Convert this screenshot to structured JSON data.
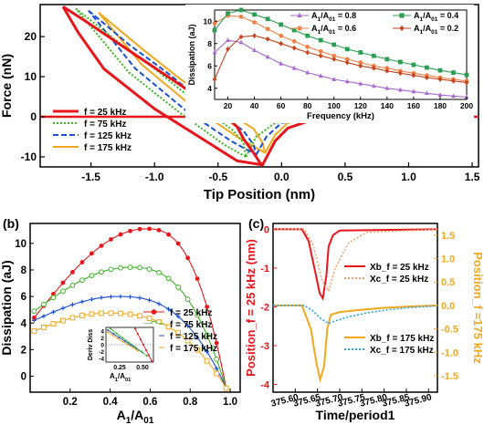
{
  "chart_data": [
    {
      "panel": "top",
      "type": "line",
      "xlabel": "Tip Position (nm)",
      "ylabel": "Force (nN)",
      "xlim": [
        -1.9,
        1.55
      ],
      "ylim": [
        -12.5,
        28
      ],
      "xticks": [
        "-1.5",
        "-1.0",
        "-0.5",
        "0.0",
        "0.5",
        "1.0",
        "1.5"
      ],
      "xtick_values": [
        -1.5,
        -1.0,
        -0.5,
        0.0,
        0.5,
        1.0,
        1.5
      ],
      "yticks": [
        "20",
        "10",
        "0",
        "-10"
      ],
      "ytick_values": [
        20,
        10,
        0,
        -10
      ],
      "legend_position": "bottom-left",
      "series": [
        {
          "name": "f = 25 kHz",
          "color": "#e8151b",
          "dash": "solid",
          "width": 3,
          "loop": [
            [
              -1.72,
              27.5
            ],
            [
              -1.55,
              24
            ],
            [
              -1.2,
              16.5
            ],
            [
              -0.8,
              8
            ],
            [
              -0.5,
              1.5
            ],
            [
              -0.35,
              -2.5
            ],
            [
              -0.3,
              -5.5
            ],
            [
              -0.22,
              -9
            ],
            [
              -0.17,
              -11.5
            ],
            [
              -0.15,
              -12
            ],
            [
              -0.35,
              -11
            ],
            [
              -0.6,
              -6
            ],
            [
              -1.0,
              2
            ],
            [
              -1.4,
              12
            ],
            [
              -1.6,
              21
            ],
            [
              -1.72,
              27.5
            ]
          ],
          "tail": [
            [
              -0.15,
              -12
            ],
            [
              -0.05,
              -6
            ],
            [
              0.05,
              -2.8
            ],
            [
              0.2,
              -1.2
            ],
            [
              0.4,
              -0.5
            ],
            [
              0.8,
              -0.2
            ],
            [
              1.5,
              0
            ]
          ]
        },
        {
          "name": "f = 75 kHz",
          "color": "#3cb521",
          "dash": "dotted",
          "width": 2,
          "loop": [
            [
              -1.62,
              27
            ],
            [
              -1.3,
              19
            ],
            [
              -1.0,
              12
            ],
            [
              -0.65,
              3
            ],
            [
              -0.38,
              -3.5
            ],
            [
              -0.3,
              -6.5
            ],
            [
              -0.28,
              -10
            ],
            [
              -0.45,
              -7
            ],
            [
              -0.8,
              1
            ],
            [
              -1.2,
              11
            ],
            [
              -1.62,
              27
            ]
          ],
          "tail": [
            [
              -0.28,
              -10
            ],
            [
              -0.2,
              -5
            ],
            [
              -0.05,
              -1.5
            ],
            [
              0.3,
              -0.3
            ],
            [
              1.5,
              0
            ]
          ]
        },
        {
          "name": "f = 125 kHz",
          "color": "#1a4fd6",
          "dash": "dashed",
          "width": 2,
          "loop": [
            [
              -1.52,
              26.5
            ],
            [
              -1.2,
              18
            ],
            [
              -0.9,
              11
            ],
            [
              -0.55,
              2
            ],
            [
              -0.3,
              -3.5
            ],
            [
              -0.22,
              -7
            ],
            [
              -0.2,
              -9.5
            ],
            [
              -0.4,
              -6
            ],
            [
              -0.75,
              1.5
            ],
            [
              -1.15,
              12
            ],
            [
              -1.52,
              26.5
            ]
          ],
          "tail": [
            [
              -0.2,
              -9.5
            ],
            [
              -0.12,
              -5
            ],
            [
              0.0,
              -1.5
            ],
            [
              0.3,
              -0.3
            ],
            [
              1.5,
              0
            ]
          ]
        },
        {
          "name": "f = 175 kHz",
          "color": "#f2a81d",
          "dash": "solid",
          "width": 2,
          "loop": [
            [
              -1.44,
              26
            ],
            [
              -1.1,
              17
            ],
            [
              -0.8,
              9.5
            ],
            [
              -0.45,
              1.5
            ],
            [
              -0.22,
              -3
            ],
            [
              -0.15,
              -6.5
            ],
            [
              -0.13,
              -9
            ],
            [
              -0.35,
              -5
            ],
            [
              -0.7,
              2.5
            ],
            [
              -1.1,
              13
            ],
            [
              -1.44,
              26
            ]
          ],
          "tail": [
            [
              -0.13,
              -9
            ],
            [
              -0.05,
              -4.5
            ],
            [
              0.05,
              -1.5
            ],
            [
              0.3,
              -0.3
            ],
            [
              1.5,
              0
            ]
          ]
        }
      ]
    },
    {
      "panel": "top-inset",
      "type": "line",
      "xlabel": "Frequency (kHz)",
      "ylabel": "Dissipation (aJ)",
      "xlim": [
        10,
        200
      ],
      "ylim": [
        3,
        11
      ],
      "xticks": [
        "20",
        "40",
        "60",
        "80",
        "100",
        "120",
        "140",
        "160",
        "180",
        "200"
      ],
      "xtick_values": [
        20,
        40,
        60,
        80,
        100,
        120,
        140,
        160,
        180,
        200
      ],
      "yticks": [
        "4",
        "6",
        "8",
        "10"
      ],
      "ytick_values": [
        4,
        6,
        8,
        10
      ],
      "x": [
        10,
        20,
        30,
        40,
        50,
        60,
        70,
        80,
        90,
        100,
        110,
        120,
        130,
        140,
        150,
        160,
        170,
        180,
        190,
        200
      ],
      "series": [
        {
          "name": "A1/A01 = 0.8",
          "color": "#a86ad0",
          "marker": "triangle",
          "values": [
            7.2,
            8.3,
            8.1,
            7.4,
            6.8,
            6.2,
            5.8,
            5.4,
            5.1,
            4.8,
            4.6,
            4.4,
            4.2,
            4.0,
            3.85,
            3.7,
            3.55,
            3.4,
            3.3,
            3.2
          ]
        },
        {
          "name": "A1/A01 = 0.6",
          "color": "#f0834a",
          "marker": "circle",
          "values": [
            9.8,
            10.5,
            10.4,
            9.9,
            9.3,
            8.7,
            8.2,
            7.7,
            7.3,
            6.9,
            6.6,
            6.3,
            6.0,
            5.8,
            5.55,
            5.35,
            5.15,
            4.95,
            4.8,
            4.65
          ]
        },
        {
          "name": "A1/A01 = 0.4",
          "color": "#2e9e55",
          "marker": "square",
          "values": [
            9.2,
            10.7,
            11.0,
            10.6,
            10.2,
            9.7,
            9.2,
            8.7,
            8.3,
            7.9,
            7.5,
            7.2,
            6.9,
            6.6,
            6.35,
            6.1,
            5.85,
            5.6,
            5.4,
            5.2
          ]
        },
        {
          "name": "A1/A01 = 0.2",
          "color": "#c4451f",
          "marker": "diamond",
          "values": [
            4.8,
            7.5,
            8.6,
            8.7,
            8.4,
            8.0,
            7.6,
            7.2,
            6.9,
            6.6,
            6.3,
            6.0,
            5.8,
            5.55,
            5.35,
            5.15,
            4.95,
            4.8,
            4.65,
            4.5
          ]
        }
      ],
      "legend": [
        {
          "pre": "A",
          "sub1": "1",
          "mid": "/A",
          "sub2": "01",
          "post": " = 0.8"
        },
        {
          "pre": "A",
          "sub1": "1",
          "mid": "/A",
          "sub2": "01",
          "post": " = 0.6"
        },
        {
          "pre": "A",
          "sub1": "1",
          "mid": "/A",
          "sub2": "01",
          "post": " = 0.4"
        },
        {
          "pre": "A",
          "sub1": "1",
          "mid": "/A",
          "sub2": "01",
          "post": " = 0.2"
        }
      ]
    },
    {
      "panel": "b",
      "label": "(b)",
      "type": "line",
      "xlabel_pre": "A",
      "xlabel_sub1": "1",
      "xlabel_mid": "/A",
      "xlabel_sub2": "01",
      "ylabel": "Dissipation (aJ)",
      "xlim": [
        0,
        1.05
      ],
      "ylim": [
        -1.2,
        11.5
      ],
      "xticks": [
        "0.2",
        "0.4",
        "0.6",
        "0.8",
        "1.0"
      ],
      "xtick_values": [
        0.2,
        0.4,
        0.6,
        0.8,
        1.0
      ],
      "yticks": [
        "0",
        "2",
        "4",
        "6",
        "8",
        "10"
      ],
      "ytick_values": [
        0,
        2,
        4,
        6,
        8,
        10
      ],
      "legend_position": "bottom-right",
      "series": [
        {
          "name": "f = 25 kHz",
          "color": "#e8151b",
          "marker": "filled-circle",
          "peak": 11.1,
          "peak_x": 0.58,
          "start": 4.4
        },
        {
          "name": "f = 75 kHz",
          "color": "#3cb521",
          "marker": "open-circle",
          "peak": 8.2,
          "peak_x": 0.5,
          "start": 4.9
        },
        {
          "name": "f = 125 kHz",
          "color": "#1a4fd6",
          "marker": "cross",
          "peak": 6.0,
          "peak_x": 0.44,
          "start": 4.2
        },
        {
          "name": "f = 175 kHz",
          "color": "#f2a81d",
          "marker": "open-square",
          "peak": 4.75,
          "peak_x": 0.38,
          "start": 3.4
        }
      ],
      "inset": {
        "ylabel": "Deriv Diss",
        "xlabel_pre": "A",
        "xlabel_sub1": "1",
        "xlabel_mid": "/A",
        "xlabel_sub2": "01",
        "xticks": [
          "0.25",
          "0.50"
        ],
        "xtick_values": [
          0.25,
          0.5
        ],
        "yticks": [
          "4",
          "2",
          "0",
          "-2",
          "-4"
        ],
        "ytick_values": [
          4,
          2,
          0,
          -2,
          -4
        ],
        "xlim": [
          0.1,
          0.62
        ],
        "ylim": [
          -5,
          5
        ]
      }
    },
    {
      "panel": "c",
      "label": "(c)",
      "type": "line",
      "xlabel": "Time/period1",
      "ylabel_left": "Position_f = 25 kHz (nm)",
      "ylabel_right": "Position_f =175 kHz",
      "xlim": [
        375.55,
        375.92
      ],
      "xticks": [
        "375.60",
        "375.65",
        "375.70",
        "375.75",
        "375.80",
        "375.85",
        "375.90"
      ],
      "xtick_values": [
        375.6,
        375.65,
        375.7,
        375.75,
        375.8,
        375.85,
        375.9
      ],
      "ylim_left": [
        -4.2,
        0.15
      ],
      "yticks_left": [
        "0",
        "-1",
        "-2",
        "-3",
        "-4"
      ],
      "ytick_values_left": [
        0,
        -1,
        -2,
        -3,
        -4
      ],
      "ylim_right": [
        -1.85,
        1.75
      ],
      "yticks_right": [
        "1.5",
        "1.0",
        "0.5",
        "0.0",
        "-0.5",
        "-1.0",
        "-1.5"
      ],
      "ytick_values_right": [
        1.5,
        1.0,
        0.5,
        0.0,
        -0.5,
        -1.0,
        -1.5
      ],
      "series": [
        {
          "name": "Xb_f = 25 kHz",
          "color": "#e8151b",
          "dash": "solid",
          "axis": "left",
          "points": [
            [
              375.55,
              0
            ],
            [
              375.615,
              0
            ],
            [
              375.63,
              -0.3
            ],
            [
              375.645,
              -1.1
            ],
            [
              375.655,
              -1.65
            ],
            [
              375.662,
              -1.78
            ],
            [
              375.67,
              -1.2
            ],
            [
              375.675,
              -0.45
            ],
            [
              375.685,
              -0.15
            ],
            [
              375.7,
              -0.03
            ],
            [
              375.92,
              0
            ]
          ]
        },
        {
          "name": "Xc_f = 25 kHz",
          "color": "#f4a070",
          "dash": "dotted",
          "axis": "left",
          "points": [
            [
              375.55,
              0
            ],
            [
              375.62,
              0
            ],
            [
              375.64,
              -0.4
            ],
            [
              375.66,
              -1.3
            ],
            [
              375.675,
              -1.6
            ],
            [
              375.69,
              -1.0
            ],
            [
              375.72,
              -0.35
            ],
            [
              375.76,
              -0.08
            ],
            [
              375.92,
              0
            ]
          ]
        },
        {
          "name": "Xb_f = 175 kHz",
          "color": "#f2a81d",
          "dash": "solid",
          "axis": "right",
          "points": [
            [
              375.55,
              0
            ],
            [
              375.615,
              0
            ],
            [
              375.635,
              -0.5
            ],
            [
              375.648,
              -1.25
            ],
            [
              375.656,
              -1.58
            ],
            [
              375.665,
              -1.3
            ],
            [
              375.672,
              -0.5
            ],
            [
              375.68,
              -0.2
            ],
            [
              375.7,
              -0.14
            ],
            [
              375.75,
              -0.09
            ],
            [
              375.8,
              -0.05
            ],
            [
              375.85,
              -0.025
            ],
            [
              375.92,
              0
            ]
          ]
        },
        {
          "name": "Xc_f = 175 kHz",
          "color": "#2aa6e6",
          "dash": "dotted",
          "axis": "right",
          "points": [
            [
              375.55,
              0
            ],
            [
              375.62,
              0
            ],
            [
              375.64,
              -0.12
            ],
            [
              375.66,
              -0.3
            ],
            [
              375.675,
              -0.38
            ],
            [
              375.69,
              -0.33
            ],
            [
              375.72,
              -0.24
            ],
            [
              375.76,
              -0.16
            ],
            [
              375.8,
              -0.1
            ],
            [
              375.85,
              -0.05
            ],
            [
              375.92,
              -0.01
            ]
          ]
        }
      ]
    }
  ]
}
